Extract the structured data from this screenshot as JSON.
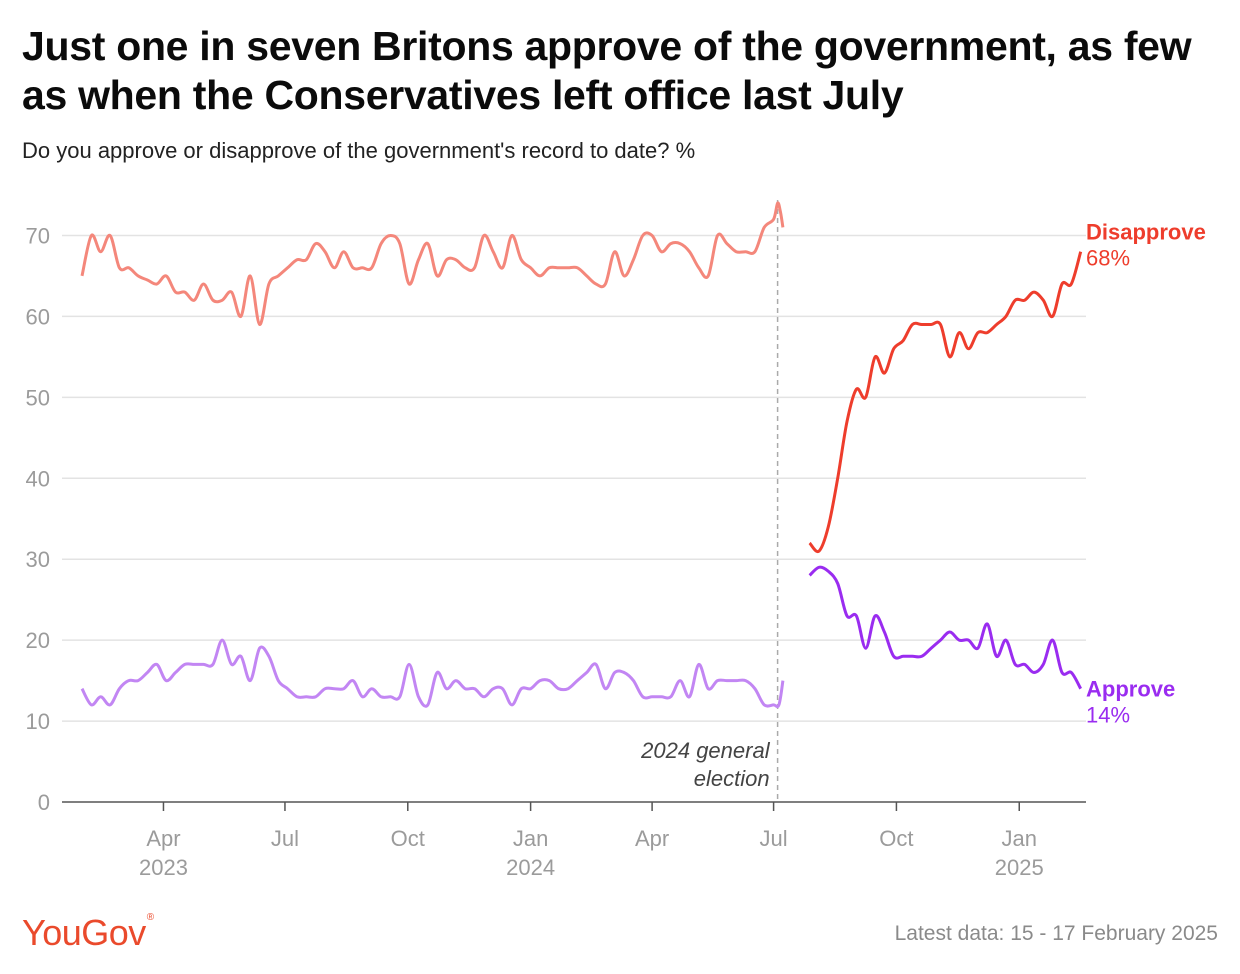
{
  "title": "Just one in seven Britons approve of the government, as few as when the Conservatives left office last July",
  "subtitle": "Do you approve or disapprove of the government's record to date? %",
  "logo_text": "YouGov",
  "footnote": "Latest data: 15 - 17 February 2025",
  "colors": {
    "disapprove_before": "#f4877b",
    "disapprove_after": "#ee3d2c",
    "approve_before": "#c286f3",
    "approve_after": "#9a2cf0",
    "grid": "#e3e3e3",
    "axis_text": "#9b9b9b",
    "logo": "#ea4a2c"
  },
  "chart_data": {
    "type": "line",
    "ylim": [
      0,
      75
    ],
    "yticks": [
      0,
      10,
      20,
      30,
      40,
      50,
      60,
      70
    ],
    "x_range": [
      "2023-01-15",
      "2025-02-20"
    ],
    "xticks": [
      {
        "date": "2023-04-01",
        "label": "Apr",
        "year": "2023"
      },
      {
        "date": "2023-07-01",
        "label": "Jul",
        "year": ""
      },
      {
        "date": "2023-10-01",
        "label": "Oct",
        "year": ""
      },
      {
        "date": "2024-01-01",
        "label": "Jan",
        "year": "2024"
      },
      {
        "date": "2024-04-01",
        "label": "Apr",
        "year": ""
      },
      {
        "date": "2024-07-01",
        "label": "Jul",
        "year": ""
      },
      {
        "date": "2024-10-01",
        "label": "Oct",
        "year": ""
      },
      {
        "date": "2025-01-01",
        "label": "Jan",
        "year": "2025"
      }
    ],
    "annotation": {
      "date": "2024-07-04",
      "text_lines": [
        "2024 general",
        "election"
      ]
    },
    "series": [
      {
        "name": "Disapprove",
        "value_label": "68%",
        "before": [
          [
            "2023-01-30",
            65
          ],
          [
            "2023-02-06",
            70
          ],
          [
            "2023-02-13",
            68
          ],
          [
            "2023-02-20",
            70
          ],
          [
            "2023-02-27",
            66
          ],
          [
            "2023-03-06",
            66
          ],
          [
            "2023-03-13",
            65
          ],
          [
            "2023-03-20",
            64.5
          ],
          [
            "2023-03-27",
            64
          ],
          [
            "2023-04-03",
            65
          ],
          [
            "2023-04-10",
            63
          ],
          [
            "2023-04-17",
            63
          ],
          [
            "2023-04-24",
            62
          ],
          [
            "2023-05-01",
            64
          ],
          [
            "2023-05-08",
            62
          ],
          [
            "2023-05-15",
            62
          ],
          [
            "2023-05-22",
            63
          ],
          [
            "2023-05-29",
            60
          ],
          [
            "2023-06-05",
            65
          ],
          [
            "2023-06-12",
            59
          ],
          [
            "2023-06-19",
            64
          ],
          [
            "2023-06-26",
            65
          ],
          [
            "2023-07-03",
            66
          ],
          [
            "2023-07-10",
            67
          ],
          [
            "2023-07-17",
            67
          ],
          [
            "2023-07-24",
            69
          ],
          [
            "2023-07-31",
            68
          ],
          [
            "2023-08-07",
            66
          ],
          [
            "2023-08-14",
            68
          ],
          [
            "2023-08-21",
            66
          ],
          [
            "2023-08-28",
            66
          ],
          [
            "2023-09-04",
            66
          ],
          [
            "2023-09-11",
            69
          ],
          [
            "2023-09-18",
            70
          ],
          [
            "2023-09-25",
            69
          ],
          [
            "2023-10-02",
            64
          ],
          [
            "2023-10-09",
            67
          ],
          [
            "2023-10-16",
            69
          ],
          [
            "2023-10-23",
            65
          ],
          [
            "2023-10-30",
            67
          ],
          [
            "2023-11-06",
            67
          ],
          [
            "2023-11-13",
            66
          ],
          [
            "2023-11-20",
            66
          ],
          [
            "2023-11-27",
            70
          ],
          [
            "2023-12-04",
            68
          ],
          [
            "2023-12-11",
            66
          ],
          [
            "2023-12-18",
            70
          ],
          [
            "2023-12-25",
            67
          ],
          [
            "2024-01-01",
            66
          ],
          [
            "2024-01-08",
            65
          ],
          [
            "2024-01-15",
            66
          ],
          [
            "2024-01-22",
            66
          ],
          [
            "2024-01-29",
            66
          ],
          [
            "2024-02-05",
            66
          ],
          [
            "2024-02-12",
            65
          ],
          [
            "2024-02-19",
            64
          ],
          [
            "2024-02-26",
            64
          ],
          [
            "2024-03-04",
            68
          ],
          [
            "2024-03-11",
            65
          ],
          [
            "2024-03-18",
            67
          ],
          [
            "2024-03-25",
            70
          ],
          [
            "2024-04-01",
            70
          ],
          [
            "2024-04-08",
            68
          ],
          [
            "2024-04-15",
            69
          ],
          [
            "2024-04-22",
            69
          ],
          [
            "2024-04-29",
            68
          ],
          [
            "2024-05-06",
            66
          ],
          [
            "2024-05-13",
            65
          ],
          [
            "2024-05-20",
            70
          ],
          [
            "2024-05-27",
            69
          ],
          [
            "2024-06-03",
            68
          ],
          [
            "2024-06-10",
            68
          ],
          [
            "2024-06-17",
            68
          ],
          [
            "2024-06-24",
            71
          ],
          [
            "2024-07-01",
            72
          ],
          [
            "2024-07-04",
            74
          ],
          [
            "2024-07-06",
            73
          ],
          [
            "2024-07-08",
            71
          ]
        ],
        "after": [
          [
            "2024-07-28",
            32
          ],
          [
            "2024-08-04",
            31
          ],
          [
            "2024-08-11",
            34
          ],
          [
            "2024-08-18",
            40
          ],
          [
            "2024-08-25",
            47
          ],
          [
            "2024-09-01",
            51
          ],
          [
            "2024-09-08",
            50
          ],
          [
            "2024-09-15",
            55
          ],
          [
            "2024-09-22",
            53
          ],
          [
            "2024-09-29",
            56
          ],
          [
            "2024-10-06",
            57
          ],
          [
            "2024-10-13",
            59
          ],
          [
            "2024-10-20",
            59
          ],
          [
            "2024-10-27",
            59
          ],
          [
            "2024-11-03",
            59
          ],
          [
            "2024-11-10",
            55
          ],
          [
            "2024-11-17",
            58
          ],
          [
            "2024-11-24",
            56
          ],
          [
            "2024-12-01",
            58
          ],
          [
            "2024-12-08",
            58
          ],
          [
            "2024-12-15",
            59
          ],
          [
            "2024-12-22",
            60
          ],
          [
            "2024-12-29",
            62
          ],
          [
            "2025-01-05",
            62
          ],
          [
            "2025-01-12",
            63
          ],
          [
            "2025-01-19",
            62
          ],
          [
            "2025-01-26",
            60
          ],
          [
            "2025-02-02",
            64
          ],
          [
            "2025-02-09",
            64
          ],
          [
            "2025-02-16",
            68
          ]
        ]
      },
      {
        "name": "Approve",
        "value_label": "14%",
        "before": [
          [
            "2023-01-30",
            14
          ],
          [
            "2023-02-06",
            12
          ],
          [
            "2023-02-13",
            13
          ],
          [
            "2023-02-20",
            12
          ],
          [
            "2023-02-27",
            14
          ],
          [
            "2023-03-06",
            15
          ],
          [
            "2023-03-13",
            15
          ],
          [
            "2023-03-20",
            16
          ],
          [
            "2023-03-27",
            17
          ],
          [
            "2023-04-03",
            15
          ],
          [
            "2023-04-10",
            16
          ],
          [
            "2023-04-17",
            17
          ],
          [
            "2023-04-24",
            17
          ],
          [
            "2023-05-01",
            17
          ],
          [
            "2023-05-08",
            17
          ],
          [
            "2023-05-15",
            20
          ],
          [
            "2023-05-22",
            17
          ],
          [
            "2023-05-29",
            18
          ],
          [
            "2023-06-05",
            15
          ],
          [
            "2023-06-12",
            19
          ],
          [
            "2023-06-19",
            18
          ],
          [
            "2023-06-26",
            15
          ],
          [
            "2023-07-03",
            14
          ],
          [
            "2023-07-10",
            13
          ],
          [
            "2023-07-17",
            13
          ],
          [
            "2023-07-24",
            13
          ],
          [
            "2023-07-31",
            14
          ],
          [
            "2023-08-07",
            14
          ],
          [
            "2023-08-14",
            14
          ],
          [
            "2023-08-21",
            15
          ],
          [
            "2023-08-28",
            13
          ],
          [
            "2023-09-04",
            14
          ],
          [
            "2023-09-11",
            13
          ],
          [
            "2023-09-18",
            13
          ],
          [
            "2023-09-25",
            13
          ],
          [
            "2023-10-02",
            17
          ],
          [
            "2023-10-09",
            13
          ],
          [
            "2023-10-16",
            12
          ],
          [
            "2023-10-23",
            16
          ],
          [
            "2023-10-30",
            14
          ],
          [
            "2023-11-06",
            15
          ],
          [
            "2023-11-13",
            14
          ],
          [
            "2023-11-20",
            14
          ],
          [
            "2023-11-27",
            13
          ],
          [
            "2023-12-04",
            14
          ],
          [
            "2023-12-11",
            14
          ],
          [
            "2023-12-18",
            12
          ],
          [
            "2023-12-25",
            14
          ],
          [
            "2024-01-01",
            14
          ],
          [
            "2024-01-08",
            15
          ],
          [
            "2024-01-15",
            15
          ],
          [
            "2024-01-22",
            14
          ],
          [
            "2024-01-29",
            14
          ],
          [
            "2024-02-05",
            15
          ],
          [
            "2024-02-12",
            16
          ],
          [
            "2024-02-19",
            17
          ],
          [
            "2024-02-26",
            14
          ],
          [
            "2024-03-04",
            16
          ],
          [
            "2024-03-11",
            16
          ],
          [
            "2024-03-18",
            15
          ],
          [
            "2024-03-25",
            13
          ],
          [
            "2024-04-01",
            13
          ],
          [
            "2024-04-08",
            13
          ],
          [
            "2024-04-15",
            13
          ],
          [
            "2024-04-22",
            15
          ],
          [
            "2024-04-29",
            13
          ],
          [
            "2024-05-06",
            17
          ],
          [
            "2024-05-13",
            14
          ],
          [
            "2024-05-20",
            15
          ],
          [
            "2024-05-27",
            15
          ],
          [
            "2024-06-03",
            15
          ],
          [
            "2024-06-10",
            15
          ],
          [
            "2024-06-17",
            14
          ],
          [
            "2024-06-24",
            12
          ],
          [
            "2024-07-01",
            12
          ],
          [
            "2024-07-05",
            12
          ],
          [
            "2024-07-08",
            15
          ]
        ],
        "after": [
          [
            "2024-07-28",
            28
          ],
          [
            "2024-08-04",
            29
          ],
          [
            "2024-08-11",
            28.5
          ],
          [
            "2024-08-18",
            27
          ],
          [
            "2024-08-25",
            23
          ],
          [
            "2024-09-01",
            23
          ],
          [
            "2024-09-08",
            19
          ],
          [
            "2024-09-15",
            23
          ],
          [
            "2024-09-22",
            21
          ],
          [
            "2024-09-29",
            18
          ],
          [
            "2024-10-06",
            18
          ],
          [
            "2024-10-13",
            18
          ],
          [
            "2024-10-20",
            18
          ],
          [
            "2024-10-27",
            19
          ],
          [
            "2024-11-03",
            20
          ],
          [
            "2024-11-10",
            21
          ],
          [
            "2024-11-17",
            20
          ],
          [
            "2024-11-24",
            20
          ],
          [
            "2024-12-01",
            19
          ],
          [
            "2024-12-08",
            22
          ],
          [
            "2024-12-15",
            18
          ],
          [
            "2024-12-22",
            20
          ],
          [
            "2024-12-29",
            17
          ],
          [
            "2025-01-05",
            17
          ],
          [
            "2025-01-12",
            16
          ],
          [
            "2025-01-19",
            17
          ],
          [
            "2025-01-26",
            20
          ],
          [
            "2025-02-02",
            16
          ],
          [
            "2025-02-09",
            16
          ],
          [
            "2025-02-16",
            14
          ]
        ]
      }
    ]
  }
}
